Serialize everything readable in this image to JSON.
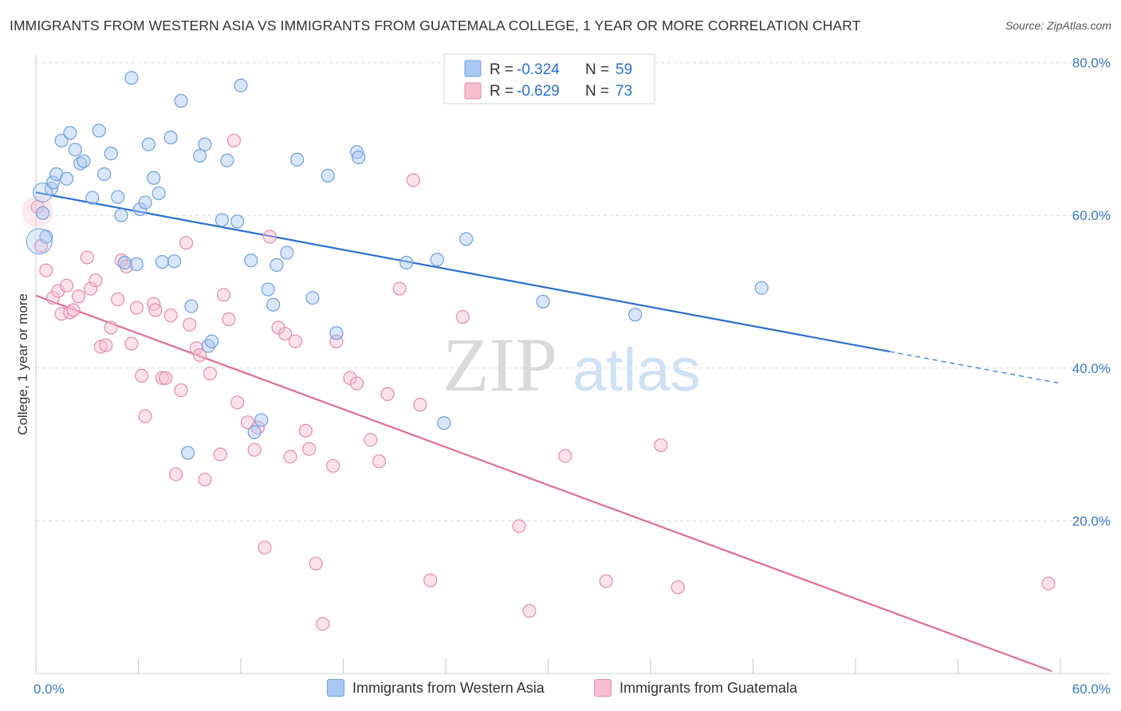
{
  "title": "IMMIGRANTS FROM WESTERN ASIA VS IMMIGRANTS FROM GUATEMALA COLLEGE, 1 YEAR OR MORE CORRELATION CHART",
  "source": "Source: ZipAtlas.com",
  "watermark": {
    "zip": "ZIP",
    "atlas": "atlas"
  },
  "colors": {
    "blue_fill": "#a9c8f2",
    "blue_stroke": "#6f9fe0",
    "blue_line": "#2a6fd1",
    "pink_fill": "#f6bfd0",
    "pink_stroke": "#e88aa9",
    "pink_line": "#e06c96",
    "axis_label": "#3a78c9",
    "grid": "#d8d8d8"
  },
  "legend": {
    "rows": [
      {
        "r_label": "R = ",
        "r_value": "-0.324",
        "n_label": "N = ",
        "n_value": "59"
      },
      {
        "r_label": "R = ",
        "r_value": "-0.629",
        "n_label": "N = ",
        "n_value": "73"
      }
    ]
  },
  "bottom_legend": [
    {
      "label": "Immigrants from Western Asia"
    },
    {
      "label": "Immigrants from Guatemala"
    }
  ],
  "chart_data": {
    "type": "scatter",
    "title": "IMMIGRANTS FROM WESTERN ASIA VS IMMIGRANTS FROM GUATEMALA COLLEGE, 1 YEAR OR MORE CORRELATION CHART",
    "xlabel": "",
    "ylabel": "College, 1 year or more",
    "xlim": [
      0,
      60
    ],
    "ylim": [
      0,
      82
    ],
    "x_tick_labels": [
      "0.0%",
      "60.0%"
    ],
    "y_ticks": [
      20,
      40,
      60,
      80
    ],
    "y_tick_labels": [
      "20.0%",
      "40.0%",
      "60.0%",
      "80.0%"
    ],
    "grid": true,
    "legend_position": "top-center",
    "series": [
      {
        "name": "Immigrants from Western Asia",
        "r": -0.324,
        "n": 59,
        "trend": {
          "x0": 0,
          "y0": 63.0,
          "x1": 60,
          "y1": 38.0,
          "solid_until_x": 50
        },
        "points": [
          [
            0.4,
            60.3
          ],
          [
            0.6,
            57.2
          ],
          [
            0.9,
            63.5
          ],
          [
            1.0,
            64.3
          ],
          [
            1.2,
            65.4
          ],
          [
            1.5,
            69.8
          ],
          [
            1.8,
            64.8
          ],
          [
            2.0,
            70.8
          ],
          [
            2.3,
            68.6
          ],
          [
            2.6,
            66.8
          ],
          [
            2.8,
            67.1
          ],
          [
            3.3,
            62.3
          ],
          [
            3.7,
            71.1
          ],
          [
            4.0,
            65.4
          ],
          [
            4.4,
            68.1
          ],
          [
            4.8,
            62.4
          ],
          [
            5.0,
            60.0
          ],
          [
            5.2,
            53.8
          ],
          [
            5.6,
            78.0
          ],
          [
            5.9,
            53.6
          ],
          [
            6.1,
            60.8
          ],
          [
            6.4,
            61.7
          ],
          [
            6.6,
            69.3
          ],
          [
            6.9,
            64.9
          ],
          [
            7.2,
            62.9
          ],
          [
            7.4,
            53.9
          ],
          [
            7.9,
            70.2
          ],
          [
            8.1,
            54.0
          ],
          [
            8.5,
            75.0
          ],
          [
            8.9,
            28.9
          ],
          [
            9.1,
            48.1
          ],
          [
            9.6,
            67.8
          ],
          [
            9.9,
            69.3
          ],
          [
            10.1,
            42.9
          ],
          [
            10.3,
            43.5
          ],
          [
            10.9,
            59.4
          ],
          [
            11.2,
            67.2
          ],
          [
            11.8,
            59.2
          ],
          [
            12.0,
            77.0
          ],
          [
            12.6,
            54.1
          ],
          [
            12.8,
            31.6
          ],
          [
            13.2,
            33.2
          ],
          [
            13.6,
            50.3
          ],
          [
            13.9,
            48.3
          ],
          [
            14.1,
            53.5
          ],
          [
            14.7,
            55.1
          ],
          [
            15.3,
            67.3
          ],
          [
            16.2,
            49.2
          ],
          [
            17.1,
            65.2
          ],
          [
            17.6,
            44.6
          ],
          [
            18.8,
            68.3
          ],
          [
            18.9,
            67.6
          ],
          [
            21.7,
            53.8
          ],
          [
            23.5,
            54.2
          ],
          [
            23.9,
            32.8
          ],
          [
            25.2,
            56.9
          ],
          [
            29.7,
            48.7
          ],
          [
            35.1,
            47.0
          ],
          [
            42.5,
            50.5
          ]
        ]
      },
      {
        "name": "Immigrants from Guatemala",
        "r": -0.629,
        "n": 73,
        "trend": {
          "x0": 0,
          "y0": 49.5,
          "x1": 59.5,
          "y1": 0.3
        },
        "points": [
          [
            0.1,
            61.1
          ],
          [
            0.6,
            52.8
          ],
          [
            1.0,
            49.2
          ],
          [
            1.3,
            50.1
          ],
          [
            1.5,
            47.1
          ],
          [
            1.8,
            50.8
          ],
          [
            2.0,
            47.3
          ],
          [
            2.2,
            47.6
          ],
          [
            2.5,
            49.4
          ],
          [
            3.0,
            54.5
          ],
          [
            3.2,
            50.4
          ],
          [
            3.5,
            51.5
          ],
          [
            3.8,
            42.8
          ],
          [
            4.1,
            43.0
          ],
          [
            4.4,
            45.3
          ],
          [
            4.8,
            49.0
          ],
          [
            5.0,
            54.1
          ],
          [
            5.3,
            53.3
          ],
          [
            5.6,
            43.2
          ],
          [
            5.9,
            47.9
          ],
          [
            6.2,
            39.0
          ],
          [
            6.4,
            33.7
          ],
          [
            6.9,
            48.4
          ],
          [
            7.0,
            47.6
          ],
          [
            7.4,
            38.7
          ],
          [
            7.6,
            38.7
          ],
          [
            7.9,
            46.9
          ],
          [
            8.2,
            26.1
          ],
          [
            8.5,
            37.1
          ],
          [
            8.8,
            56.4
          ],
          [
            9.0,
            45.7
          ],
          [
            9.4,
            42.6
          ],
          [
            9.6,
            41.7
          ],
          [
            9.9,
            25.4
          ],
          [
            10.2,
            39.3
          ],
          [
            10.8,
            28.7
          ],
          [
            11.0,
            49.6
          ],
          [
            11.3,
            46.4
          ],
          [
            11.6,
            69.8
          ],
          [
            11.8,
            35.5
          ],
          [
            12.4,
            32.9
          ],
          [
            12.8,
            29.3
          ],
          [
            13.0,
            32.2
          ],
          [
            13.4,
            16.5
          ],
          [
            13.7,
            57.2
          ],
          [
            14.2,
            45.3
          ],
          [
            14.6,
            44.5
          ],
          [
            14.9,
            28.4
          ],
          [
            15.2,
            43.5
          ],
          [
            15.8,
            31.8
          ],
          [
            16.0,
            29.4
          ],
          [
            16.4,
            14.4
          ],
          [
            16.8,
            6.5
          ],
          [
            17.4,
            27.2
          ],
          [
            17.6,
            43.5
          ],
          [
            18.4,
            38.7
          ],
          [
            18.8,
            38.0
          ],
          [
            19.6,
            30.6
          ],
          [
            20.1,
            27.8
          ],
          [
            20.6,
            36.6
          ],
          [
            21.3,
            50.4
          ],
          [
            22.1,
            64.6
          ],
          [
            22.5,
            35.2
          ],
          [
            23.1,
            12.2
          ],
          [
            25.0,
            46.7
          ],
          [
            28.3,
            19.3
          ],
          [
            28.9,
            8.2
          ],
          [
            31.0,
            28.5
          ],
          [
            33.4,
            12.1
          ],
          [
            36.6,
            29.9
          ],
          [
            37.6,
            11.3
          ],
          [
            59.3,
            11.8
          ],
          [
            0.3,
            56.0
          ]
        ]
      }
    ]
  }
}
